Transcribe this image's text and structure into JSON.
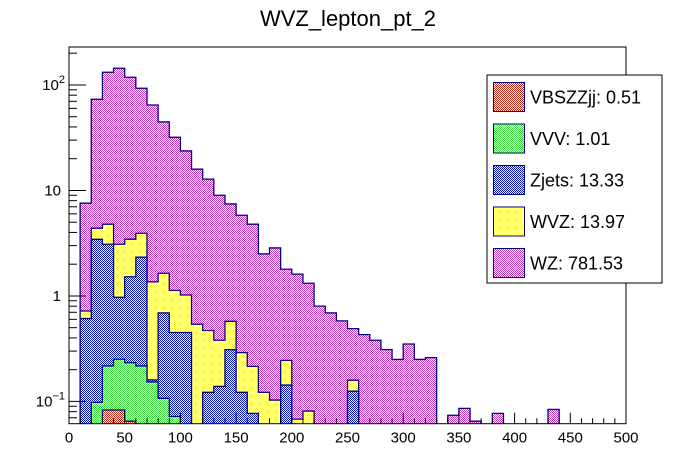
{
  "chart_data": {
    "type": "bar",
    "subtype": "stacked-histogram",
    "title": "WVZ_lepton_pt_2",
    "xlabel": "",
    "ylabel": "",
    "xlim": [
      0,
      500
    ],
    "ylim": [
      0.0615,
      229
    ],
    "yscale": "log",
    "bin_width": 10,
    "grid": false,
    "legend_position": "top-right",
    "x_ticks": [
      0,
      50,
      100,
      150,
      200,
      250,
      300,
      350,
      400,
      450,
      500
    ],
    "x_tick_labels": [
      "0",
      "50",
      "100",
      "150",
      "200",
      "250",
      "300",
      "350",
      "400",
      "450",
      "500"
    ],
    "y_ticks": [
      0.1,
      1,
      10,
      100
    ],
    "y_tick_labels": [
      {
        "base": "10",
        "exp": "−1"
      },
      {
        "base": "1",
        "exp": ""
      },
      {
        "base": "10",
        "exp": ""
      },
      {
        "base": "10",
        "exp": "2"
      }
    ],
    "stack_order_bottom_to_top": [
      "VBSZZjj",
      "VVV",
      "Zjets",
      "WVZ",
      "WZ"
    ],
    "value_mode": "cumulative stack tops per bin (bin low edge -> stacked top)",
    "series": [
      {
        "name": "VBSZZjj",
        "legend_label": "VBSZZjj: 0.51",
        "color": "#d02c1c",
        "cumulative": {
          "30": 0.083,
          "40": 0.083,
          "50": 0.065
        }
      },
      {
        "name": "VVV",
        "legend_label": "VVV: 1.01",
        "color": "#3ee03e",
        "cumulative": {
          "20": 0.098,
          "30": 0.217,
          "40": 0.251,
          "50": 0.233,
          "60": 0.217,
          "70": 0.153,
          "80": 0.107,
          "90": 0.072
        }
      },
      {
        "name": "Zjets",
        "legend_label": "Zjets: 13.33",
        "color": "#0010c8",
        "cumulative": {
          "10": 0.61,
          "20": 3.44,
          "30": 3.09,
          "40": 0.97,
          "50": 1.52,
          "60": 2.33,
          "70": 0.16,
          "80": 0.69,
          "90": 0.45,
          "100": 0.45,
          "120": 0.122,
          "130": 0.139,
          "140": 0.31,
          "150": 0.122,
          "160": 0.077,
          "190": 0.143,
          "250": 0.125
        }
      },
      {
        "name": "WVZ",
        "legend_label": "WVZ: 13.97",
        "color": "#ffff60",
        "cumulative": {
          "10": 0.72,
          "20": 4.39,
          "30": 4.79,
          "40": 3.09,
          "50": 3.45,
          "60": 3.93,
          "70": 1.36,
          "80": 1.64,
          "90": 1.13,
          "100": 1.02,
          "110": 0.54,
          "120": 0.47,
          "130": 0.38,
          "140": 0.575,
          "150": 0.29,
          "160": 0.215,
          "170": 0.122,
          "180": 0.103,
          "190": 0.245,
          "200": 0.068,
          "210": 0.081,
          "250": 0.159
        }
      },
      {
        "name": "WZ",
        "legend_label": "WZ: 781.53",
        "color": "#c83cc8",
        "cumulative": {
          "10": 7.57,
          "20": 73.1,
          "30": 131.9,
          "40": 143.9,
          "50": 118.3,
          "60": 93.0,
          "70": 64.6,
          "80": 44.6,
          "90": 31.9,
          "100": 23.7,
          "110": 15.9,
          "120": 12.8,
          "130": 9.0,
          "140": 7.45,
          "150": 5.82,
          "160": 4.79,
          "170": 2.5,
          "180": 2.85,
          "190": 1.79,
          "200": 1.61,
          "210": 1.32,
          "220": 0.8,
          "230": 0.69,
          "240": 0.58,
          "250": 0.49,
          "260": 0.43,
          "270": 0.38,
          "280": 0.31,
          "290": 0.25,
          "300": 0.35,
          "310": 0.25,
          "320": 0.26,
          "340": 0.074,
          "350": 0.086,
          "360": 0.065,
          "380": 0.077,
          "430": 0.084
        }
      }
    ],
    "legend_order_top_to_bottom": [
      "VBSZZjj",
      "VVV",
      "Zjets",
      "WVZ",
      "WZ"
    ],
    "outline_color": "#000080"
  }
}
